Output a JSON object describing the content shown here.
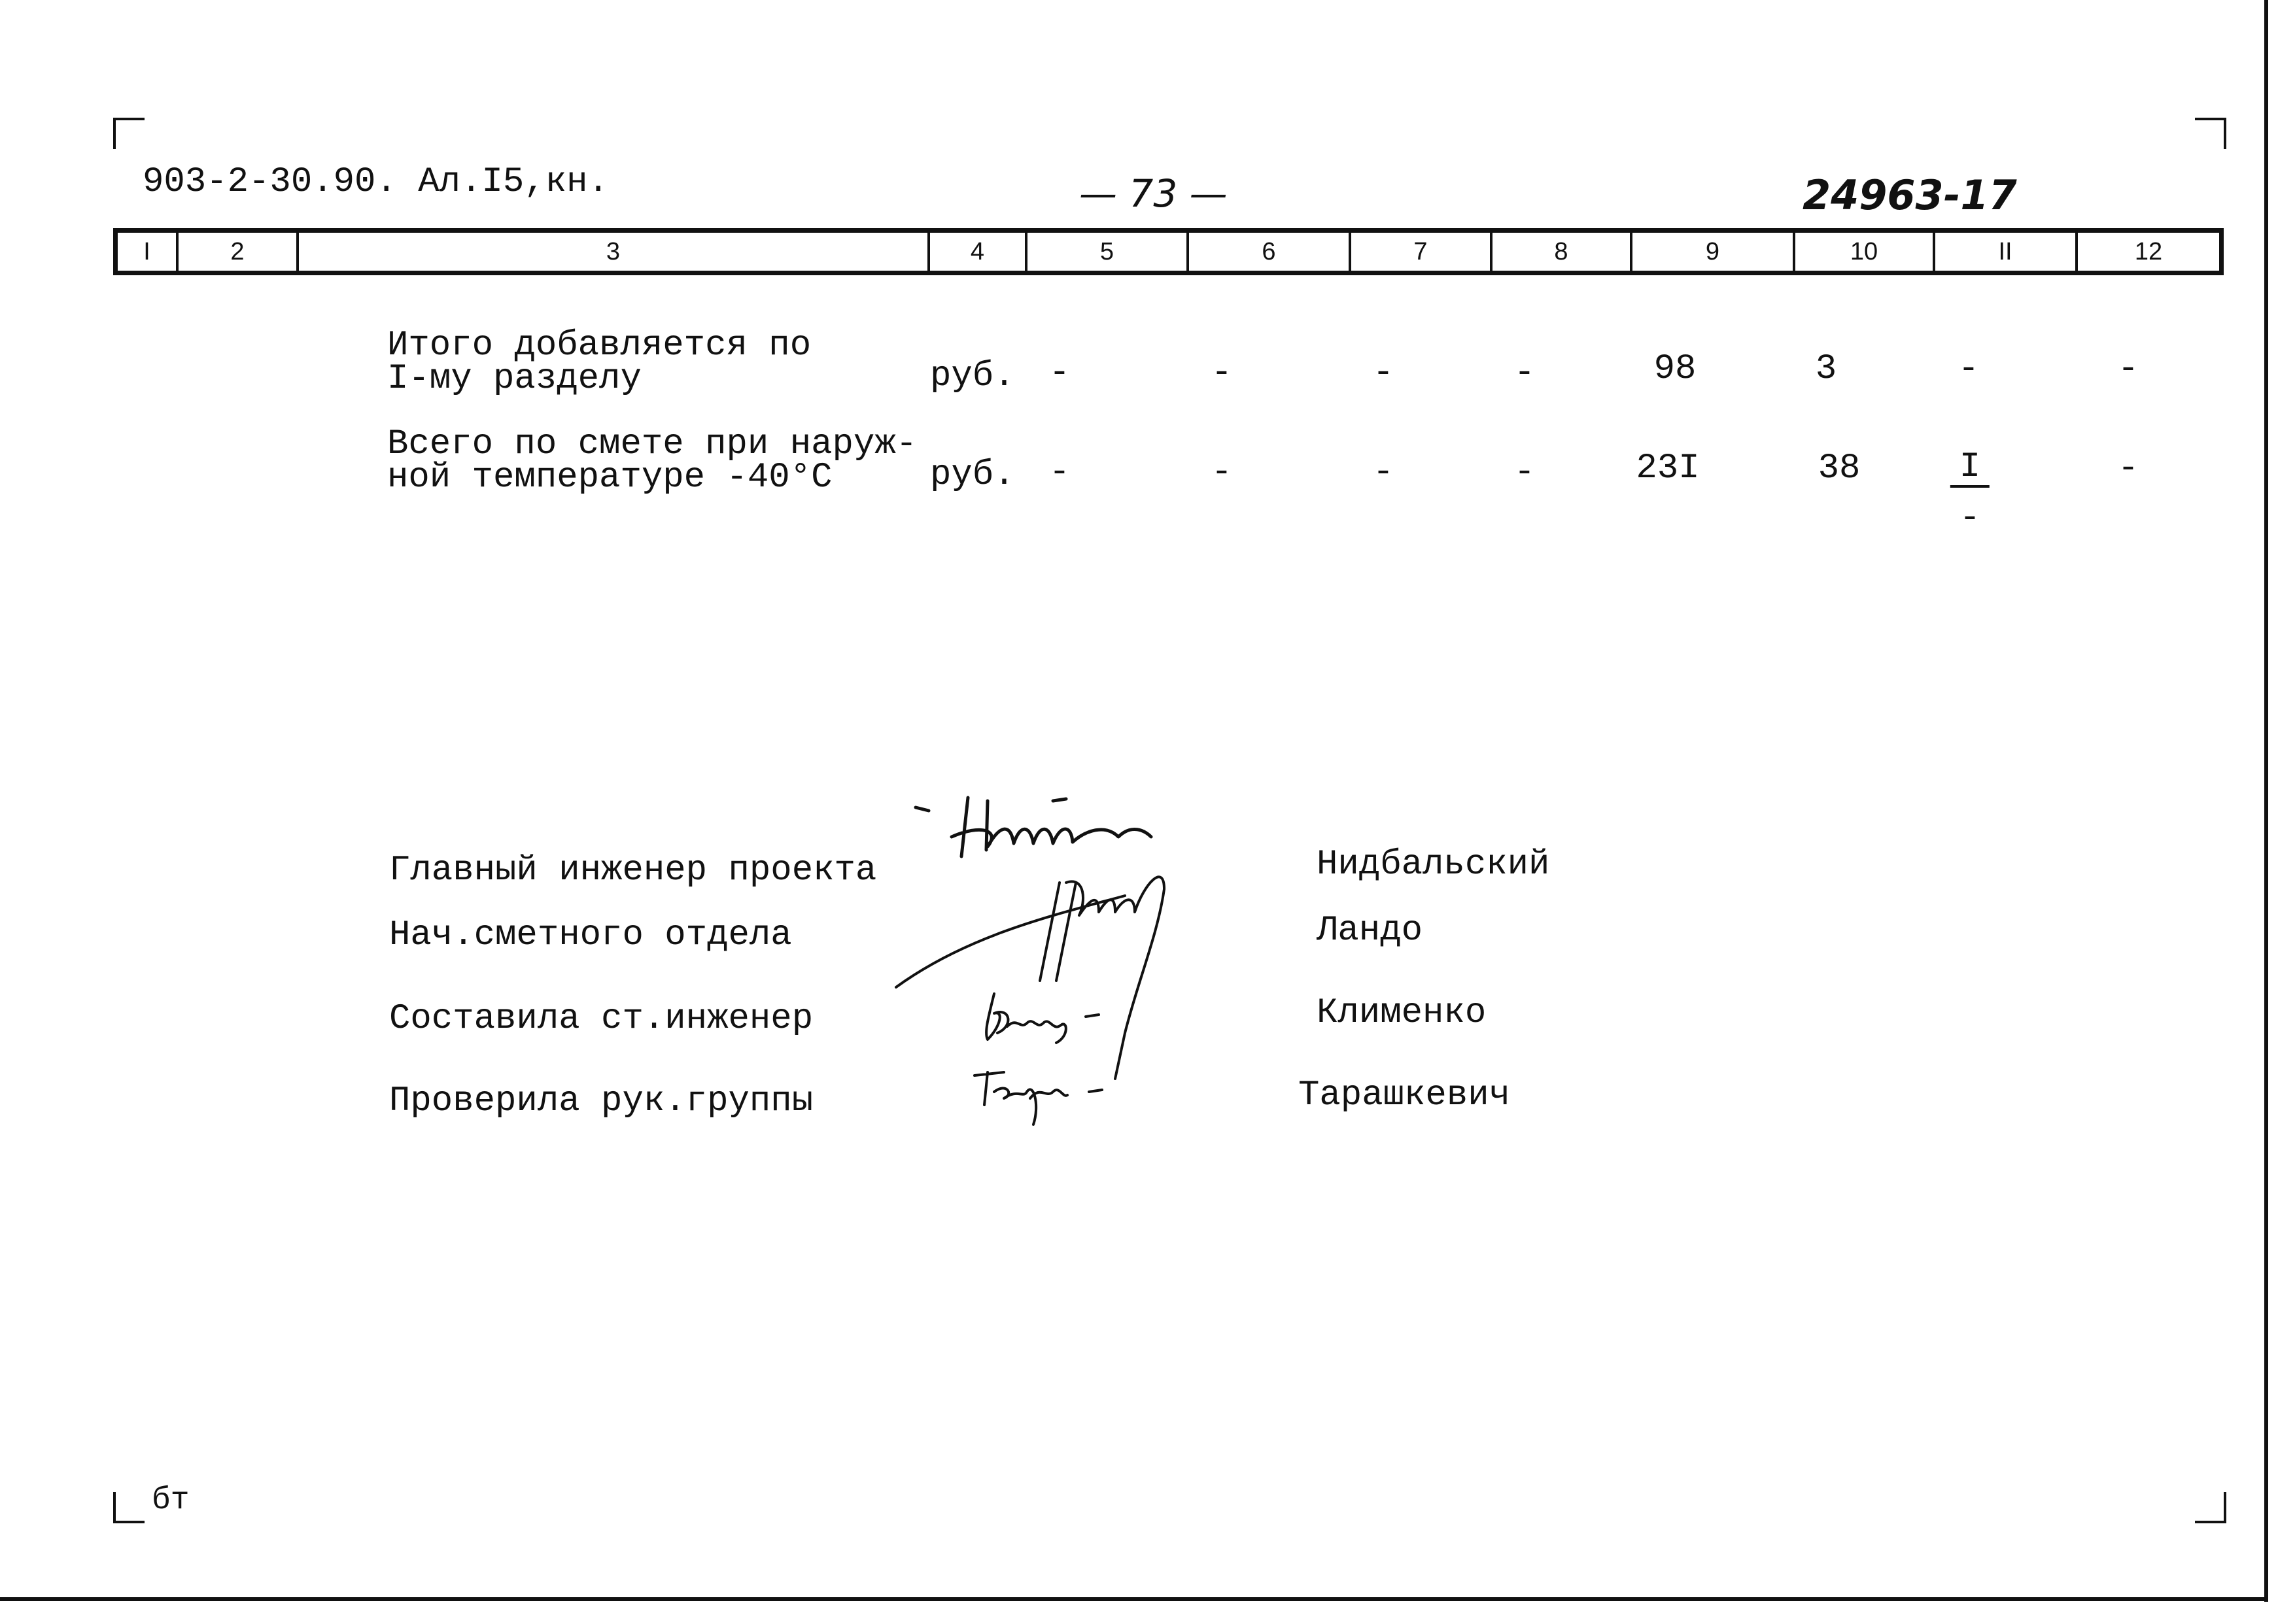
{
  "header": {
    "doc_code": "903-2-30.90. Ал.I5,кн.",
    "page_number": "— 73 —",
    "archive_number": "24963-17"
  },
  "column_numbers": [
    "I",
    "2",
    "3",
    "4",
    "5",
    "6",
    "7",
    "8",
    "9",
    "10",
    "II",
    "12"
  ],
  "rows": [
    {
      "description": [
        "Итого добавляется по",
        "I-му разделу"
      ],
      "unit": "руб.",
      "values": [
        "-",
        "-",
        "-",
        "-",
        "98",
        "3",
        "-",
        "-"
      ]
    },
    {
      "description": [
        "Всего по смете при наруж-",
        "ной температуре -40°С"
      ],
      "unit": "руб.",
      "values": [
        "-",
        "-",
        "-",
        "-",
        "23I",
        "38",
        "I",
        "-"
      ],
      "col11_below": "-"
    }
  ],
  "signatures": [
    {
      "role": "Главный инженер проекта",
      "name": "Нидбальский"
    },
    {
      "role": "Нач.сметного отдела",
      "name": "Ландо"
    },
    {
      "role": "Составила ст.инженер",
      "name": "Клименко"
    },
    {
      "role": "Проверила рук.группы",
      "name": "Тарашкевич"
    }
  ],
  "footer_mark": "бт"
}
